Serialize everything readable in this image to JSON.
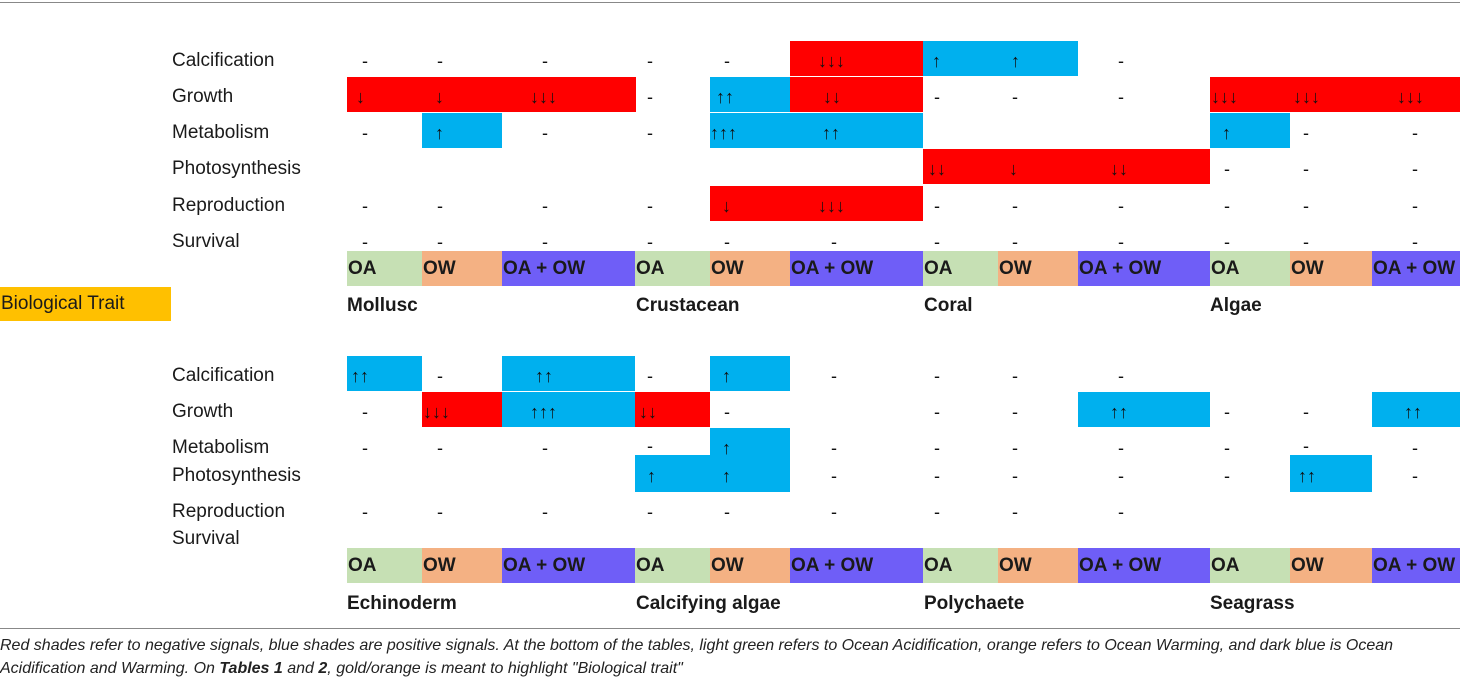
{
  "traits": {
    "calcification": "Calcification",
    "growth": "Growth",
    "metabolism": "Metabolism",
    "photosynthesis": "Photosynthesis",
    "reproduction": "Reproduction",
    "survival": "Survival"
  },
  "conditions": {
    "oa": "OA",
    "ow": "OW",
    "both": "OA + OW"
  },
  "biological_trait": "Biological Trait",
  "groups": {
    "mollusc": "Mollusc",
    "crustacean": "Crustacean",
    "coral": "Coral",
    "algae": "Algae",
    "echinoderm": "Echinoderm",
    "calcifying_algae": "Calcifying algae",
    "polychaete": "Polychaete",
    "seagrass": "Seagrass"
  },
  "signals": {
    "none": "-",
    "up1": "↑",
    "up2": "↑↑",
    "up3": "↑↑↑",
    "down1": "↓",
    "down2": "↓↓",
    "down3": "↓↓↓"
  },
  "colors": {
    "negative": "#ff0000",
    "positive": "#00b0ee",
    "oa": "#c6e0b4",
    "ow": "#f4b183",
    "oa_ow": "#6f5ef7",
    "highlight": "#ffc000"
  },
  "caption": {
    "part1": "Red shades refer to negative signals, blue shades are positive signals. At the bottom of the tables, light green refers to Ocean Acidification, orange refers to Ocean Warming, and dark blue is Ocean Acidification and Warming. On ",
    "tables1": "Tables 1",
    "and": " and ",
    "tables2": "2",
    "part2": ", gold/orange is meant to highlight \"Biological trait\""
  }
}
